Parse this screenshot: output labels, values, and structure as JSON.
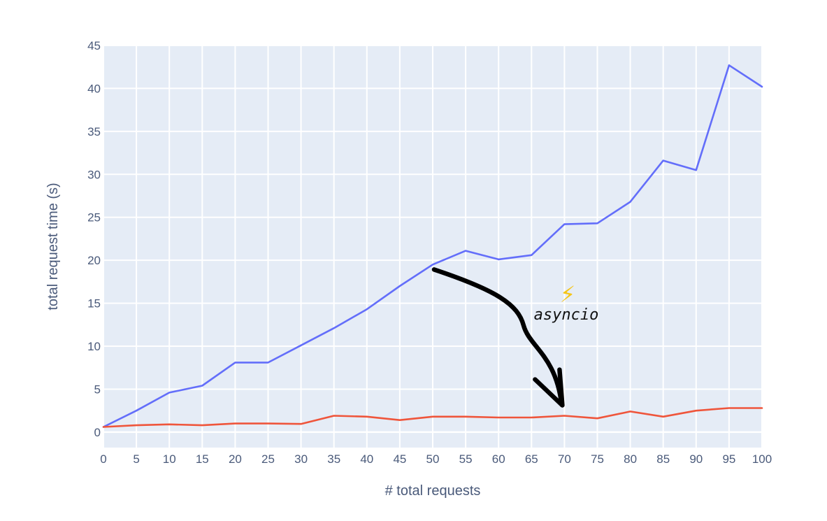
{
  "chart_data": {
    "type": "line",
    "title": "",
    "xlabel": "# total requests",
    "ylabel": "total request time (s)",
    "xlim": [
      0,
      100
    ],
    "ylim": [
      -1.8,
      45
    ],
    "x_ticks": [
      0,
      5,
      10,
      15,
      20,
      25,
      30,
      35,
      40,
      45,
      50,
      55,
      60,
      65,
      70,
      75,
      80,
      85,
      90,
      95,
      100
    ],
    "y_ticks": [
      0,
      5,
      10,
      15,
      20,
      25,
      30,
      35,
      40,
      45
    ],
    "grid": true,
    "legend": "none",
    "x": [
      0,
      5,
      10,
      15,
      20,
      25,
      30,
      35,
      40,
      45,
      50,
      55,
      60,
      65,
      70,
      75,
      80,
      85,
      90,
      95,
      100
    ],
    "series": [
      {
        "color": "#636efa",
        "values": [
          0.6,
          2.5,
          4.6,
          5.4,
          8.1,
          8.1,
          10.1,
          12.1,
          14.3,
          17.0,
          19.5,
          21.1,
          20.1,
          20.6,
          24.2,
          24.3,
          26.8,
          31.6,
          30.5,
          42.7,
          40.2
        ]
      },
      {
        "color": "#ef553b",
        "values": [
          0.6,
          0.8,
          0.9,
          0.8,
          1.0,
          1.0,
          0.95,
          1.9,
          1.8,
          1.4,
          1.8,
          1.8,
          1.7,
          1.7,
          1.9,
          1.6,
          2.4,
          1.8,
          2.5,
          2.8,
          2.8
        ]
      }
    ],
    "annotation": {
      "text": "asyncio",
      "icon": "lightning-bolt-icon",
      "icon_glyph": "⚡",
      "icon_color": "#f5c518",
      "arrow_color": "#000000",
      "arrow_from": [
        50,
        19
      ],
      "arrow_to": [
        70,
        3.2
      ]
    }
  }
}
